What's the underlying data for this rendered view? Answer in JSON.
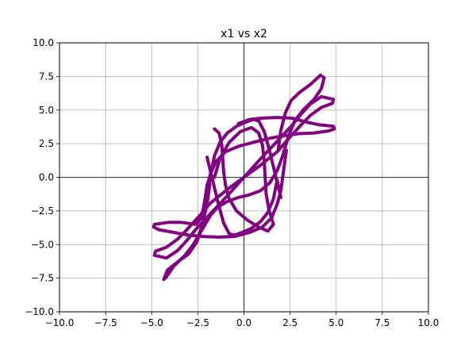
{
  "chart_data": {
    "type": "line",
    "title": "x1 vs x2",
    "xlabel": "",
    "ylabel": "",
    "xlim": [
      -10.0,
      10.0
    ],
    "ylim": [
      -10.0,
      10.0
    ],
    "xticks": [
      "−10.0",
      "−7.5",
      "−5.0",
      "−2.5",
      "0.0",
      "2.5",
      "5.0",
      "7.5",
      "10.0"
    ],
    "yticks": [
      "−10.0",
      "−7.5",
      "−5.0",
      "−2.5",
      "0.0",
      "2.5",
      "5.0",
      "7.5",
      "10.0"
    ],
    "xtick_values": [
      -10,
      -7.5,
      -5,
      -2.5,
      0,
      2.5,
      5,
      7.5,
      10
    ],
    "ytick_values": [
      -10,
      -7.5,
      -5,
      -2.5,
      0,
      2.5,
      5,
      7.5,
      10
    ],
    "grid": true,
    "axis_lines_at_zero": true,
    "legend": "none",
    "series": [
      {
        "color": "#800080",
        "x": [
          0.0,
          0.95,
          1.85,
          2.6,
          3.1,
          3.6,
          4.2,
          4.85,
          4.8,
          4.2,
          3.6,
          3.1,
          2.5,
          1.8,
          0.9,
          0.0,
          -0.9,
          -1.8,
          -2.5,
          -3.1,
          -3.6,
          -4.2,
          -4.8,
          -4.85,
          -4.2,
          -3.6,
          -3.1,
          -2.6,
          -1.85,
          -0.95,
          0.0
        ],
        "y": [
          0.0,
          1.45,
          2.75,
          3.85,
          4.7,
          5.45,
          6.0,
          5.8,
          5.5,
          5.2,
          4.6,
          3.9,
          3.0,
          1.9,
          0.9,
          0.0,
          -0.9,
          -1.9,
          -3.0,
          -3.9,
          -4.6,
          -5.2,
          -5.5,
          -5.8,
          -6.0,
          -5.45,
          -4.7,
          -3.85,
          -2.75,
          -1.45,
          0.0
        ]
      },
      {
        "color": "#800080",
        "x": [
          1.85,
          2.0,
          2.25,
          2.55,
          3.0,
          3.6,
          4.15,
          4.35,
          4.2,
          3.8,
          3.2,
          2.75,
          2.4,
          2.1,
          1.8,
          1.4,
          0.9,
          0.3,
          -0.3,
          -0.9,
          -1.4,
          -1.8,
          -2.1,
          -2.4,
          -2.75,
          -3.2,
          -3.8,
          -4.2,
          -4.35,
          -4.15,
          -3.6,
          -3.0,
          -2.55,
          -2.25,
          -2.0,
          -1.85
        ],
        "y": [
          2.0,
          3.5,
          4.8,
          5.7,
          6.3,
          6.9,
          7.6,
          7.4,
          6.6,
          5.8,
          5.0,
          4.2,
          3.0,
          1.6,
          0.5,
          -0.4,
          -1.0,
          -1.3,
          -1.5,
          -1.8,
          -2.2,
          -2.8,
          -3.5,
          -4.2,
          -5.0,
          -5.8,
          -6.6,
          -7.4,
          -7.6,
          -6.9,
          -6.3,
          -5.7,
          -4.8,
          -3.5,
          -2.0,
          -0.5
        ]
      },
      {
        "color": "#800080",
        "x": [
          -0.3,
          0.3,
          1.0,
          1.8,
          2.6,
          3.4,
          4.1,
          4.85,
          4.9,
          4.6,
          3.8,
          3.0,
          2.2,
          1.4,
          0.5,
          -0.3,
          -1.0,
          -1.5,
          -1.8,
          -2.0,
          -2.1,
          -2.2,
          -2.3,
          -2.6,
          -3.4,
          -4.1,
          -4.85,
          -4.9,
          -4.6,
          -3.8,
          -3.0,
          -2.2,
          -1.4,
          -0.5,
          0.3,
          1.0,
          1.5,
          1.8,
          2.0,
          2.1,
          2.2,
          2.3
        ],
        "y": [
          4.0,
          4.3,
          4.4,
          4.45,
          4.4,
          4.1,
          3.9,
          3.8,
          3.6,
          3.45,
          3.3,
          3.25,
          3.1,
          2.9,
          2.6,
          2.3,
          1.9,
          1.2,
          0.3,
          -0.6,
          -1.5,
          -2.3,
          -3.0,
          -3.5,
          -3.35,
          -3.35,
          -3.5,
          -3.7,
          -3.9,
          -4.1,
          -4.3,
          -4.4,
          -4.45,
          -4.4,
          -4.1,
          -3.7,
          -3.0,
          -2.0,
          -1.0,
          0.0,
          1.0,
          2.0
        ]
      },
      {
        "color": "#800080",
        "x": [
          -1.6,
          -1.3,
          -0.8,
          -0.2,
          0.4,
          0.8,
          1.0,
          1.1,
          1.15,
          1.2,
          1.35,
          1.6,
          1.3,
          0.8,
          0.2,
          -0.4,
          -0.8,
          -1.0,
          -1.1,
          -1.15,
          -1.2,
          -1.35,
          -1.6
        ],
        "y": [
          0.0,
          1.4,
          2.6,
          3.4,
          3.7,
          3.3,
          2.4,
          1.2,
          0.0,
          -1.2,
          -2.4,
          -3.5,
          -4.0,
          -3.7,
          -3.2,
          -2.5,
          -1.6,
          -0.6,
          0.4,
          1.4,
          2.4,
          3.3,
          3.6
        ]
      },
      {
        "color": "#800080",
        "x": [
          -2.0,
          -1.8,
          -1.6,
          -1.3,
          -0.9,
          -0.4,
          0.1,
          0.5,
          0.8,
          1.1,
          1.4,
          1.7,
          2.0,
          1.8,
          1.6,
          1.3,
          0.9,
          0.4,
          -0.1,
          -0.5,
          -0.8,
          -1.1,
          -1.4,
          -1.7,
          -2.0
        ],
        "y": [
          -1.5,
          0.2,
          1.6,
          2.6,
          3.3,
          3.8,
          4.1,
          4.3,
          4.2,
          3.4,
          1.9,
          0.2,
          -1.5,
          -0.2,
          -1.6,
          -2.6,
          -3.3,
          -3.8,
          -4.1,
          -4.3,
          -4.2,
          -3.4,
          -1.9,
          -0.2,
          1.5
        ]
      }
    ]
  }
}
